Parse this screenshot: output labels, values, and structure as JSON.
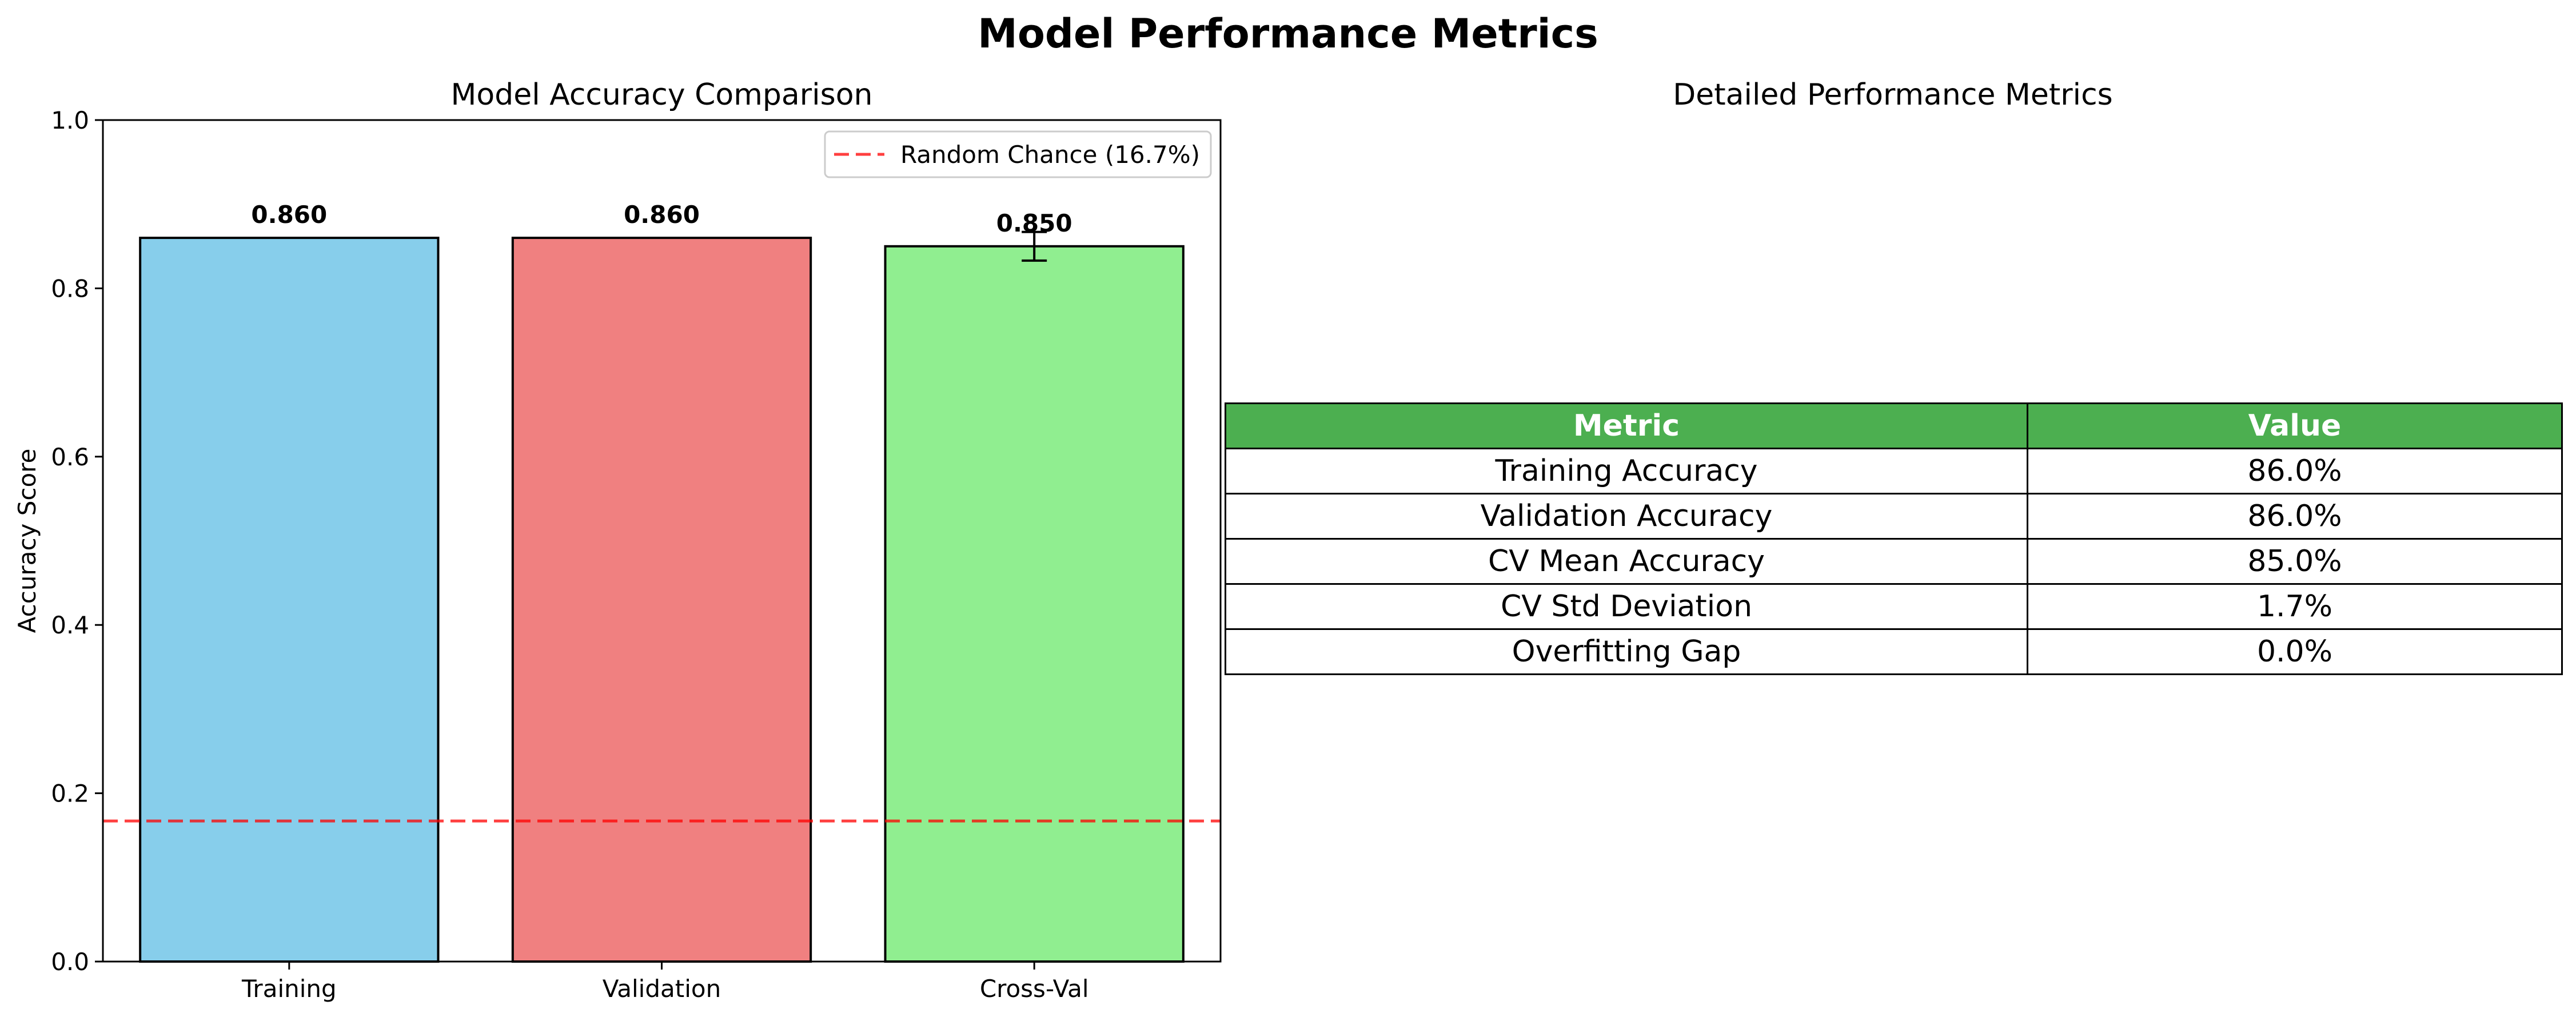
{
  "figure": {
    "suptitle": "Model Performance Metrics"
  },
  "chart_data": [
    {
      "type": "bar",
      "title": "Model Accuracy Comparison",
      "xlabel": "",
      "ylabel": "Accuracy Score",
      "ylim": [
        0,
        1.0
      ],
      "yticks": [
        0.0,
        0.2,
        0.4,
        0.6,
        0.8,
        1.0
      ],
      "ytick_labels": [
        "0.0",
        "0.2",
        "0.4",
        "0.6",
        "0.8",
        "1.0"
      ],
      "categories": [
        "Training",
        "Validation",
        "Cross-Val"
      ],
      "values": [
        0.86,
        0.86,
        0.85
      ],
      "value_labels": [
        "0.860",
        "0.860",
        "0.850"
      ],
      "error": [
        0,
        0,
        0.017
      ],
      "colors": [
        "#87ceeb",
        "#f08080",
        "#90ee90"
      ],
      "edge_color": "#000000",
      "reference_line": {
        "label": "Random Chance (16.7%)",
        "y": 0.167,
        "color": "#ff0000",
        "style": "dashed"
      },
      "legend_position": "top-right",
      "grid": false
    },
    {
      "type": "table",
      "title": "Detailed Performance Metrics",
      "header_color": "#4caf50",
      "columns": [
        "Metric",
        "Value"
      ],
      "rows": [
        [
          "Training Accuracy",
          "86.0%"
        ],
        [
          "Validation Accuracy",
          "86.0%"
        ],
        [
          "CV Mean Accuracy",
          "85.0%"
        ],
        [
          "CV Std Deviation",
          "1.7%"
        ],
        [
          "Overfitting Gap",
          "0.0%"
        ]
      ]
    }
  ]
}
